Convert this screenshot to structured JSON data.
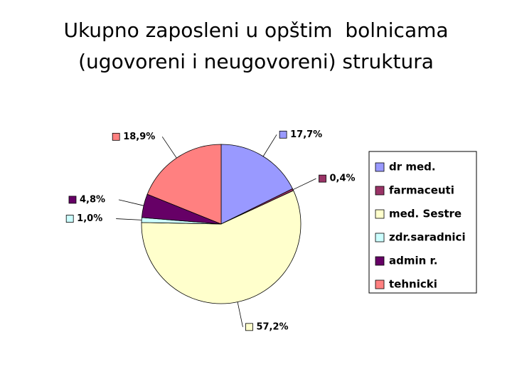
{
  "chart_data": {
    "type": "pie",
    "title": [
      "Ukupno zaposleni u opštim  bolnicama",
      "(ugovoreni i neugovoreni) struktura"
    ],
    "categories": [
      "dr med.",
      "farmaceuti",
      "med. Sestre",
      "zdr.saradnici",
      "admin r.",
      "tehnicki"
    ],
    "values": [
      17.7,
      0.4,
      57.2,
      1.0,
      4.8,
      18.9
    ],
    "value_labels": [
      "17,7%",
      "0,4%",
      "57,2%",
      "1,0%",
      "4,8%",
      "18,9%"
    ],
    "colors": [
      "#9999ff",
      "#993366",
      "#ffffcc",
      "#ccffff",
      "#660066",
      "#ff8080"
    ],
    "legend": "right"
  }
}
